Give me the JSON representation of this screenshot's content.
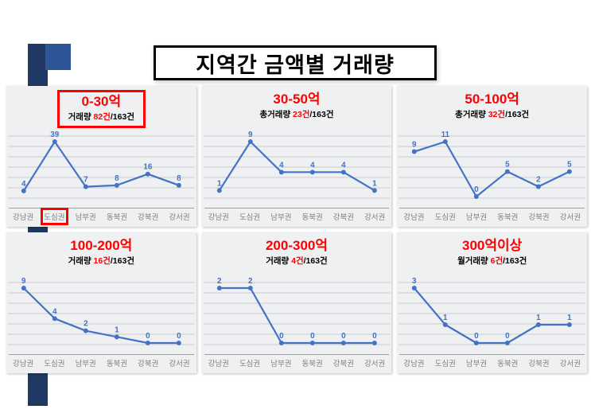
{
  "slide": {
    "title": "지역간 금액별 거래량"
  },
  "colors": {
    "line": "#4472c4",
    "red": "#ff0000",
    "navy": "#1f3864",
    "blue": "#2e5597"
  },
  "chart_data": [
    {
      "type": "line",
      "title": "0-30억",
      "subtitle_prefix": "거래량 ",
      "subtitle_count": "82건",
      "subtitle_total": "/163건",
      "categories": [
        "강남권",
        "도심권",
        "남부권",
        "동북권",
        "강북권",
        "강서권"
      ],
      "values": [
        4,
        39,
        7,
        8,
        16,
        8
      ],
      "ylim": [
        0,
        39
      ],
      "title_boxed": true,
      "boxed_category": "도심권",
      "legend": "none",
      "grid": "horizontal"
    },
    {
      "type": "line",
      "title": "30-50억",
      "subtitle_prefix": "총거래량 ",
      "subtitle_count": "23건",
      "subtitle_total": "/163건",
      "categories": [
        "강남권",
        "도심권",
        "남부권",
        "동북권",
        "강북권",
        "강서권"
      ],
      "values": [
        1,
        9,
        4,
        4,
        4,
        1
      ],
      "ylim": [
        0,
        9
      ],
      "title_boxed": false,
      "legend": "none",
      "grid": "horizontal"
    },
    {
      "type": "line",
      "title": "50-100억",
      "subtitle_prefix": "총거래량 ",
      "subtitle_count": "32건",
      "subtitle_total": "/163건",
      "categories": [
        "강남권",
        "도심권",
        "남부권",
        "동북권",
        "강북권",
        "강서권"
      ],
      "values": [
        9,
        11,
        0,
        5,
        2,
        5
      ],
      "ylim": [
        0,
        11
      ],
      "title_boxed": false,
      "legend": "none",
      "grid": "horizontal"
    },
    {
      "type": "line",
      "title": "100-200억",
      "subtitle_prefix": "거래량 ",
      "subtitle_count": "16건",
      "subtitle_total": "/163건",
      "categories": [
        "강남권",
        "도심권",
        "남부권",
        "동북권",
        "강북권",
        "강서권"
      ],
      "values": [
        9,
        4,
        2,
        1,
        0,
        0
      ],
      "ylim": [
        0,
        9
      ],
      "title_boxed": false,
      "legend": "none",
      "grid": "horizontal"
    },
    {
      "type": "line",
      "title": "200-300억",
      "subtitle_prefix": "거래량 ",
      "subtitle_count": "4건",
      "subtitle_total": "/163건",
      "categories": [
        "강남권",
        "도심권",
        "남부권",
        "동북권",
        "강북권",
        "강서권"
      ],
      "values": [
        2,
        2,
        0,
        0,
        0,
        0
      ],
      "ylim": [
        0,
        2
      ],
      "title_boxed": false,
      "legend": "none",
      "grid": "horizontal"
    },
    {
      "type": "line",
      "title": "300억이상",
      "subtitle_prefix": "월거래량 ",
      "subtitle_count": "6건",
      "subtitle_total": "/163건",
      "categories": [
        "강남권",
        "도심권",
        "남부권",
        "동북권",
        "강북권",
        "강서권"
      ],
      "values": [
        3,
        1,
        0,
        0,
        1,
        1
      ],
      "ylim": [
        0,
        3
      ],
      "title_boxed": false,
      "legend": "none",
      "grid": "horizontal"
    }
  ]
}
